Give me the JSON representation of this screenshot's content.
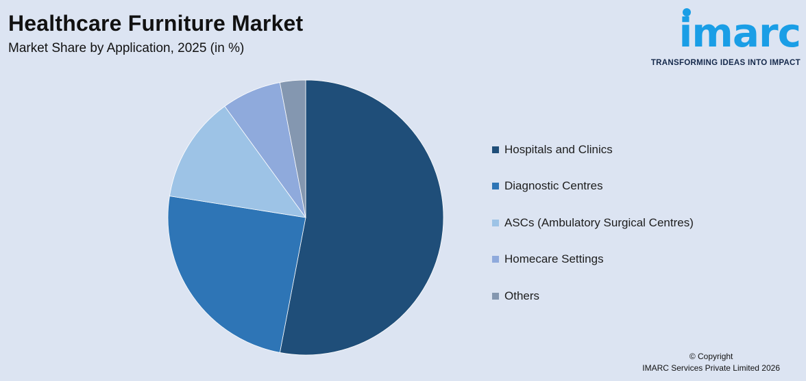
{
  "header": {
    "title": "Healthcare Furniture Market",
    "subtitle": "Market Share by Application, 2025 (in %)"
  },
  "logo": {
    "wordmark": "imarc",
    "tagline": "TRANSFORMING IDEAS INTO IMPACT",
    "color": "#1a9ee6"
  },
  "chart_data": {
    "type": "pie",
    "title": "Healthcare Furniture Market",
    "subtitle": "Market Share by Application, 2025 (in %)",
    "legend_position": "right",
    "start_angle": "12 o'clock, clockwise",
    "series": [
      {
        "name": "Hospitals and Clinics",
        "value": 53.0,
        "color": "#1f4e79"
      },
      {
        "name": "Diagnostic Centres",
        "value": 24.5,
        "color": "#2e75b6"
      },
      {
        "name": "ASCs (Ambulatory Surgical Centres)",
        "value": 12.5,
        "color": "#9dc3e6"
      },
      {
        "name": "Homecare Settings",
        "value": 7.0,
        "color": "#8faadc"
      },
      {
        "name": "Others",
        "value": 3.0,
        "color": "#8497b0"
      }
    ]
  },
  "footer": {
    "copyright": "© Copyright",
    "company": "IMARC Services Private Limited 2026"
  }
}
